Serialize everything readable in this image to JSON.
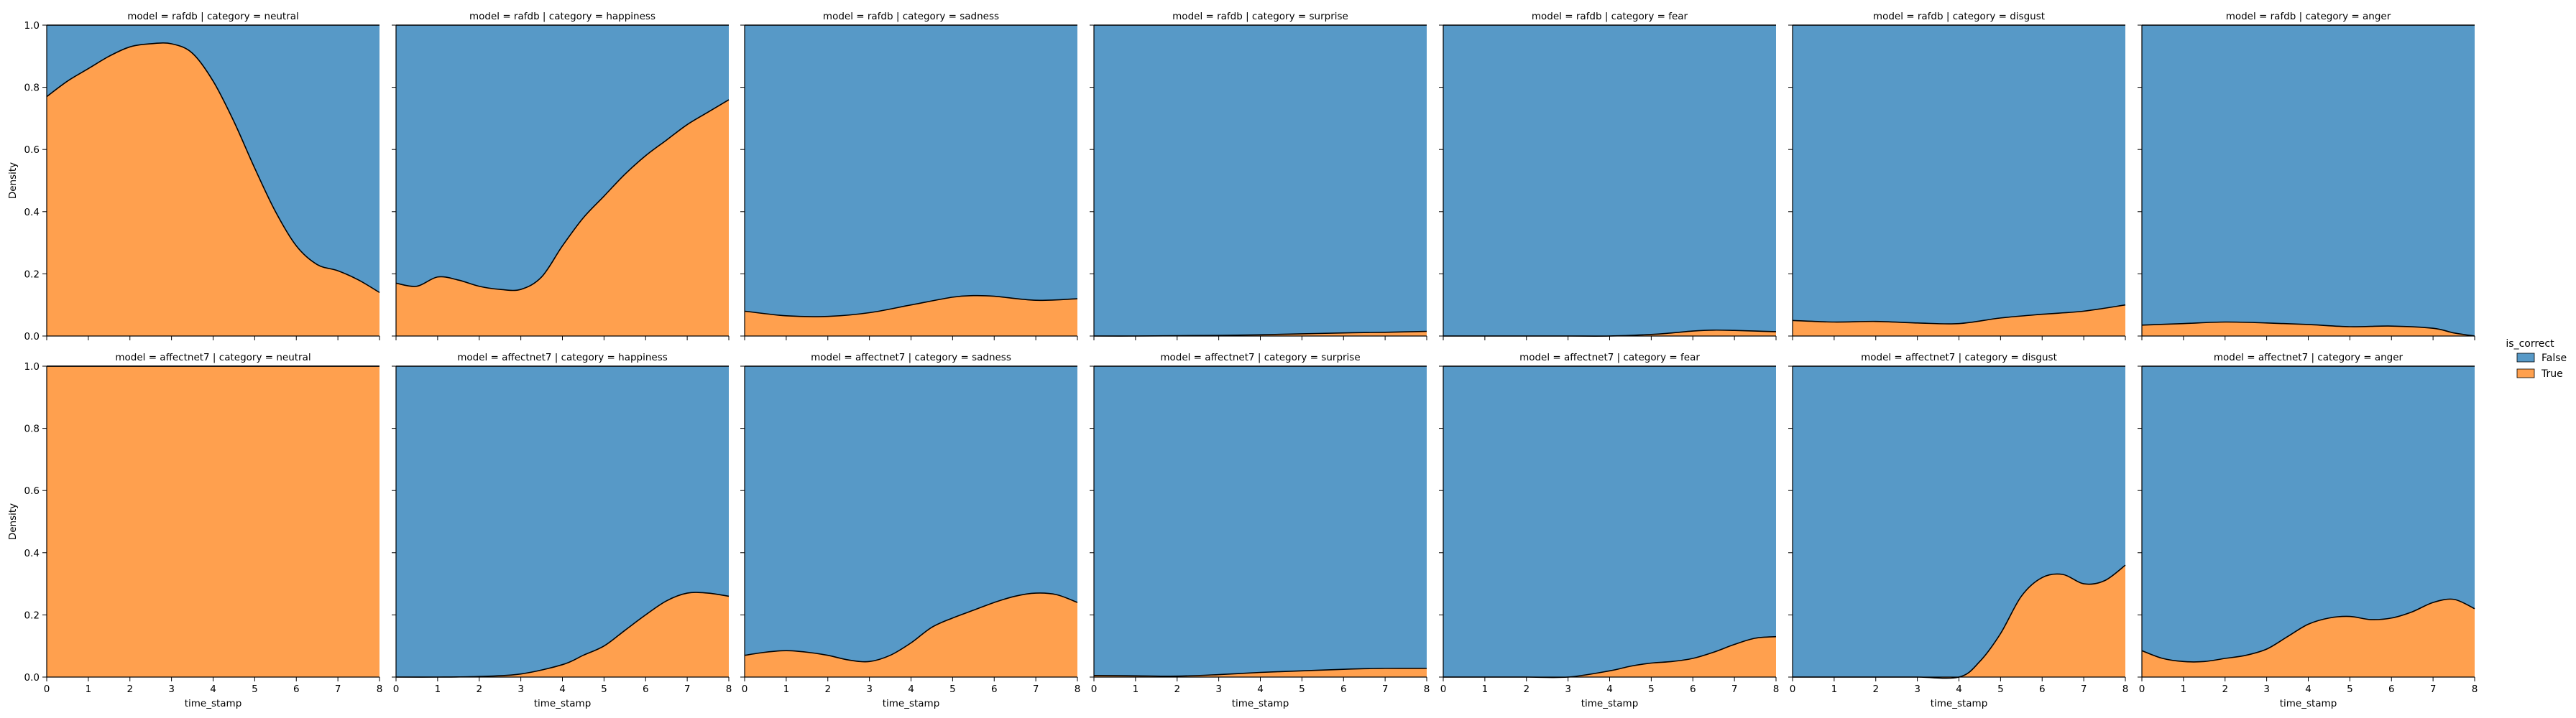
{
  "figure": {
    "legend_title": "is_correct",
    "legend_items": [
      {
        "label": "False",
        "color": "#5799c7"
      },
      {
        "label": "True",
        "color": "#ffa04e"
      }
    ],
    "row_ylabel": "Density",
    "col_xlabel": "time_stamp"
  },
  "chart_data": {
    "type": "area",
    "stacking": "fill",
    "layout": {
      "rows": 2,
      "cols": 7
    },
    "series_order": [
      "True",
      "False"
    ],
    "colors": {
      "False": "#5799c7",
      "True": "#ffa04e"
    },
    "xlim": [
      0,
      8
    ],
    "ylim": [
      0,
      1
    ],
    "x_ticks": [
      0,
      1,
      2,
      3,
      4,
      5,
      6,
      7,
      8
    ],
    "y_ticks": [
      "0.0",
      "0.2",
      "0.4",
      "0.6",
      "0.8",
      "1.0"
    ],
    "grid": false,
    "legend_position": "right",
    "panels": [
      {
        "title": "model = rafdb | category = neutral",
        "row": 0,
        "col": 0,
        "x": [
          0,
          0.5,
          1,
          1.5,
          2,
          2.5,
          3,
          3.5,
          4,
          4.5,
          5,
          5.5,
          6,
          6.5,
          7,
          7.5,
          8
        ],
        "true_share": [
          0.77,
          0.82,
          0.86,
          0.9,
          0.93,
          0.94,
          0.94,
          0.91,
          0.82,
          0.69,
          0.54,
          0.4,
          0.29,
          0.23,
          0.21,
          0.18,
          0.14
        ]
      },
      {
        "title": "model = rafdb | category = happiness",
        "row": 0,
        "col": 1,
        "x": [
          0,
          0.5,
          1,
          1.5,
          2,
          2.5,
          3,
          3.5,
          4,
          4.5,
          5,
          5.5,
          6,
          6.5,
          7,
          7.5,
          8
        ],
        "true_share": [
          0.17,
          0.16,
          0.19,
          0.18,
          0.16,
          0.15,
          0.15,
          0.19,
          0.29,
          0.38,
          0.45,
          0.52,
          0.58,
          0.63,
          0.68,
          0.72,
          0.76
        ]
      },
      {
        "title": "model = rafdb | category = sadness",
        "row": 0,
        "col": 2,
        "x": [
          0,
          1,
          2,
          3,
          4,
          5,
          5.5,
          6,
          7,
          8
        ],
        "true_share": [
          0.08,
          0.065,
          0.063,
          0.075,
          0.1,
          0.125,
          0.13,
          0.128,
          0.115,
          0.12
        ]
      },
      {
        "title": "model = rafdb | category = surprise",
        "row": 0,
        "col": 3,
        "x": [
          0,
          1,
          2,
          3,
          4,
          5,
          6,
          7,
          8
        ],
        "true_share": [
          0.0,
          0.0,
          0.001,
          0.002,
          0.004,
          0.007,
          0.01,
          0.012,
          0.015
        ]
      },
      {
        "title": "model = rafdb | category = fear",
        "row": 0,
        "col": 4,
        "x": [
          0,
          1,
          2,
          3,
          4,
          5,
          5.5,
          6,
          6.5,
          7,
          7.5,
          8
        ],
        "true_share": [
          0.0,
          0.0,
          0.0,
          0.0,
          0.0,
          0.005,
          0.01,
          0.016,
          0.019,
          0.018,
          0.016,
          0.014
        ]
      },
      {
        "title": "model = rafdb | category = disgust",
        "row": 0,
        "col": 5,
        "x": [
          0,
          1,
          2,
          3,
          4,
          5,
          6,
          7,
          8
        ],
        "true_share": [
          0.05,
          0.045,
          0.047,
          0.042,
          0.04,
          0.058,
          0.07,
          0.08,
          0.1
        ]
      },
      {
        "title": "model = rafdb | category = anger",
        "row": 0,
        "col": 6,
        "x": [
          0,
          1,
          2,
          3,
          4,
          5,
          6,
          7,
          7.5,
          8
        ],
        "true_share": [
          0.035,
          0.04,
          0.045,
          0.042,
          0.037,
          0.03,
          0.032,
          0.025,
          0.01,
          0.0
        ]
      },
      {
        "title": "model = affectnet7 | category = neutral",
        "row": 1,
        "col": 0,
        "x": [
          0,
          8
        ],
        "true_share": [
          1.0,
          1.0
        ]
      },
      {
        "title": "model = affectnet7 | category = happiness",
        "row": 1,
        "col": 1,
        "x": [
          0,
          1,
          2,
          3,
          4,
          4.5,
          5,
          5.5,
          6,
          6.5,
          7,
          7.5,
          8
        ],
        "true_share": [
          0.0,
          0.0,
          0.002,
          0.01,
          0.04,
          0.07,
          0.1,
          0.15,
          0.2,
          0.245,
          0.27,
          0.27,
          0.26
        ]
      },
      {
        "title": "model = affectnet7 | category = sadness",
        "row": 1,
        "col": 2,
        "x": [
          0,
          0.5,
          1,
          1.5,
          2,
          2.5,
          3,
          3.5,
          4,
          4.5,
          5,
          5.5,
          6,
          6.5,
          7,
          7.5,
          8
        ],
        "true_share": [
          0.07,
          0.08,
          0.085,
          0.08,
          0.07,
          0.055,
          0.05,
          0.07,
          0.11,
          0.16,
          0.19,
          0.215,
          0.24,
          0.26,
          0.27,
          0.265,
          0.24
        ]
      },
      {
        "title": "model = affectnet7 | category = surprise",
        "row": 1,
        "col": 3,
        "x": [
          0,
          1,
          2,
          3,
          4,
          5,
          6,
          7,
          8
        ],
        "true_share": [
          0.005,
          0.004,
          0.003,
          0.008,
          0.015,
          0.02,
          0.025,
          0.028,
          0.028
        ]
      },
      {
        "title": "model = affectnet7 | category = fear",
        "row": 1,
        "col": 4,
        "x": [
          0,
          1,
          2,
          3,
          4,
          4.5,
          5,
          5.5,
          6,
          6.5,
          7,
          7.5,
          8
        ],
        "true_share": [
          0.0,
          0.0,
          0.0,
          0.0,
          0.02,
          0.035,
          0.045,
          0.05,
          0.06,
          0.08,
          0.105,
          0.125,
          0.13
        ]
      },
      {
        "title": "model = affectnet7 | category = disgust",
        "row": 1,
        "col": 5,
        "x": [
          0,
          1,
          2,
          3,
          4,
          4.5,
          5,
          5.5,
          6,
          6.5,
          7,
          7.5,
          8
        ],
        "true_share": [
          0.0,
          0.0,
          0.0,
          0.0,
          0.0,
          0.05,
          0.14,
          0.26,
          0.32,
          0.33,
          0.3,
          0.31,
          0.36
        ]
      },
      {
        "title": "model = affectnet7 | category = anger",
        "row": 1,
        "col": 6,
        "x": [
          0,
          0.5,
          1,
          1.5,
          2,
          2.5,
          3,
          3.5,
          4,
          4.5,
          5,
          5.5,
          6,
          6.5,
          7,
          7.5,
          8
        ],
        "true_share": [
          0.085,
          0.06,
          0.05,
          0.05,
          0.06,
          0.07,
          0.09,
          0.13,
          0.17,
          0.19,
          0.195,
          0.185,
          0.19,
          0.21,
          0.24,
          0.25,
          0.22
        ]
      }
    ]
  }
}
